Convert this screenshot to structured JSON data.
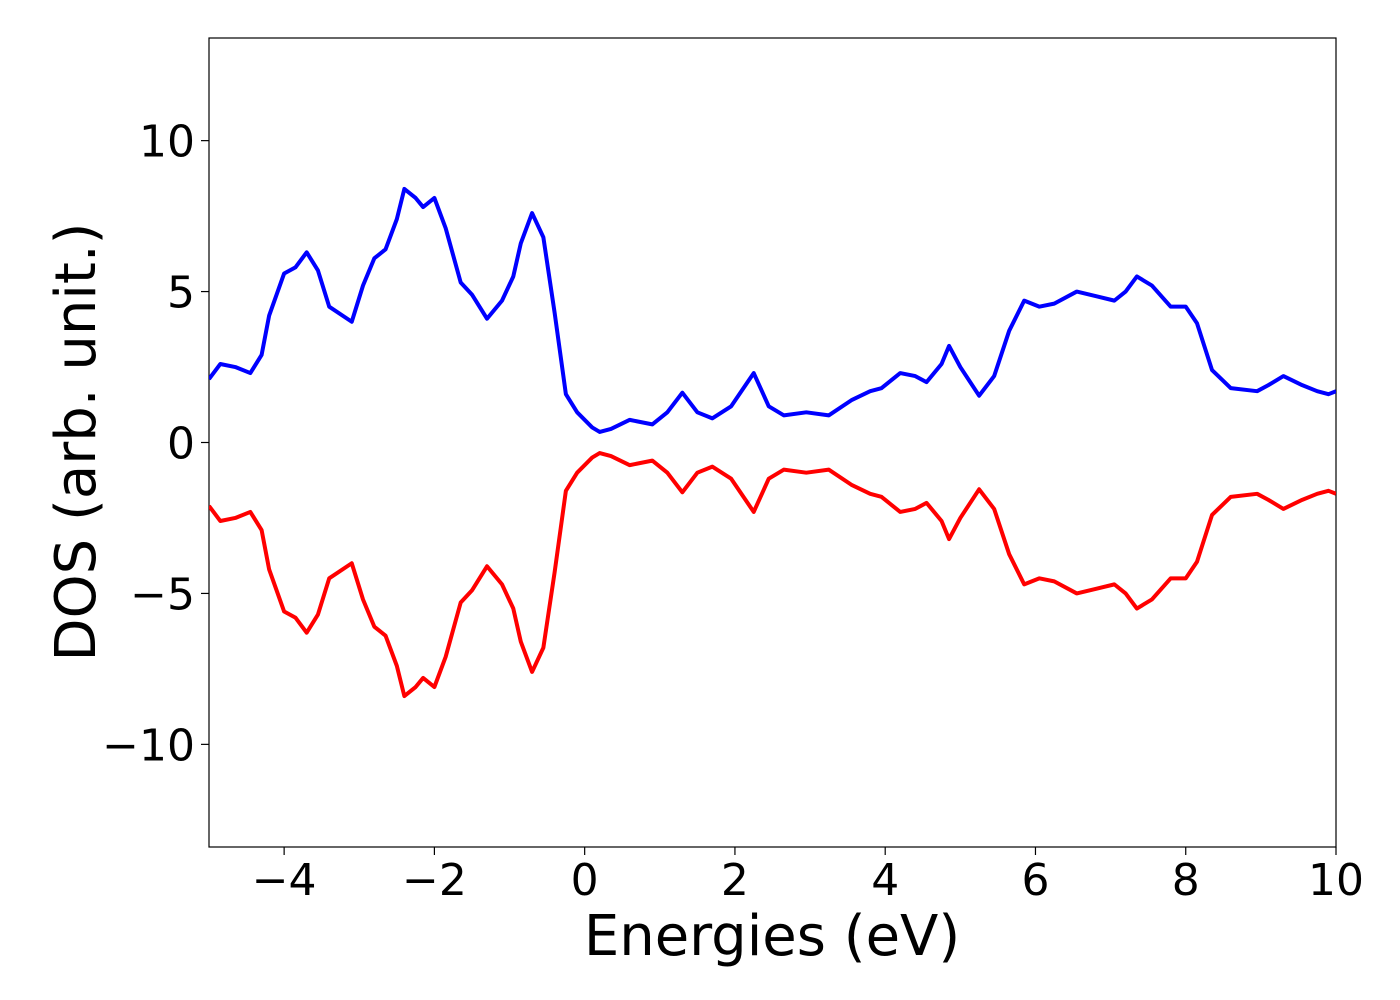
{
  "chart_data": {
    "type": "line",
    "x_label": "Energies (eV)",
    "y_label": "DOS (arb. unit.)",
    "x": [
      -5,
      -4.85,
      -4.65,
      -4.45,
      -4.3,
      -4.2,
      -4.0,
      -3.85,
      -3.7,
      -3.55,
      -3.4,
      -3.1,
      -2.95,
      -2.8,
      -2.65,
      -2.5,
      -2.4,
      -2.25,
      -2.15,
      -2.0,
      -1.85,
      -1.65,
      -1.5,
      -1.3,
      -1.1,
      -0.95,
      -0.85,
      -0.7,
      -0.55,
      -0.4,
      -0.25,
      -0.1,
      0.1,
      0.2,
      0.35,
      0.6,
      0.9,
      1.1,
      1.3,
      1.5,
      1.7,
      1.95,
      2.25,
      2.45,
      2.65,
      2.95,
      3.25,
      3.55,
      3.8,
      3.95,
      4.2,
      4.4,
      4.55,
      4.75,
      4.85,
      5.0,
      5.25,
      5.45,
      5.65,
      5.85,
      6.05,
      6.25,
      6.55,
      6.8,
      7.05,
      7.2,
      7.35,
      7.55,
      7.8,
      8.0,
      8.15,
      8.35,
      8.6,
      8.95,
      9.1,
      9.3,
      9.55,
      9.75,
      9.9,
      10
    ],
    "series": [
      {
        "color": "#0000ff",
        "values": [
          2.1,
          2.6,
          2.5,
          2.3,
          2.9,
          4.2,
          5.6,
          5.8,
          6.3,
          5.7,
          4.5,
          4.0,
          5.2,
          6.1,
          6.4,
          7.4,
          8.4,
          8.1,
          7.8,
          8.1,
          7.1,
          5.3,
          4.9,
          4.1,
          4.7,
          5.5,
          6.6,
          7.6,
          6.8,
          4.3,
          1.6,
          1.0,
          0.5,
          0.35,
          0.45,
          0.75,
          0.6,
          1.0,
          1.65,
          1.0,
          0.8,
          1.2,
          2.3,
          1.2,
          0.9,
          1.0,
          0.9,
          1.4,
          1.7,
          1.8,
          2.3,
          2.2,
          2.0,
          2.6,
          3.2,
          2.5,
          1.55,
          2.2,
          3.7,
          4.7,
          4.5,
          4.6,
          5.0,
          4.85,
          4.7,
          5.0,
          5.5,
          5.2,
          4.5,
          4.5,
          3.95,
          2.4,
          1.8,
          1.7,
          1.9,
          2.2,
          1.9,
          1.7,
          1.6,
          1.7
        ]
      },
      {
        "color": "#ff0000",
        "values": [
          -2.1,
          -2.6,
          -2.5,
          -2.3,
          -2.9,
          -4.2,
          -5.6,
          -5.8,
          -6.3,
          -5.7,
          -4.5,
          -4.0,
          -5.2,
          -6.1,
          -6.4,
          -7.4,
          -8.4,
          -8.1,
          -7.8,
          -8.1,
          -7.1,
          -5.3,
          -4.9,
          -4.1,
          -4.7,
          -5.5,
          -6.6,
          -7.6,
          -6.8,
          -4.3,
          -1.6,
          -1.0,
          -0.5,
          -0.35,
          -0.45,
          -0.75,
          -0.6,
          -1.0,
          -1.65,
          -1.0,
          -0.8,
          -1.2,
          -2.3,
          -1.2,
          -0.9,
          -1.0,
          -0.9,
          -1.4,
          -1.7,
          -1.8,
          -2.3,
          -2.2,
          -2.0,
          -2.6,
          -3.2,
          -2.5,
          -1.55,
          -2.2,
          -3.7,
          -4.7,
          -4.5,
          -4.6,
          -5.0,
          -4.85,
          -4.7,
          -5.0,
          -5.5,
          -5.2,
          -4.5,
          -4.5,
          -3.95,
          -2.4,
          -1.8,
          -1.7,
          -1.9,
          -2.2,
          -1.9,
          -1.7,
          -1.6,
          -1.7
        ]
      }
    ],
    "xlim": [
      -5,
      10
    ],
    "xticks": [
      {
        "value": -4,
        "label": "−4"
      },
      {
        "value": -2,
        "label": "−2"
      },
      0,
      2,
      4,
      6,
      8,
      10
    ],
    "ylim": [
      -13.4,
      13.4
    ],
    "yticks": [
      {
        "value": -10,
        "label": "−10"
      },
      {
        "value": -5,
        "label": "−5"
      },
      0,
      5,
      10
    ],
    "grid": false
  }
}
